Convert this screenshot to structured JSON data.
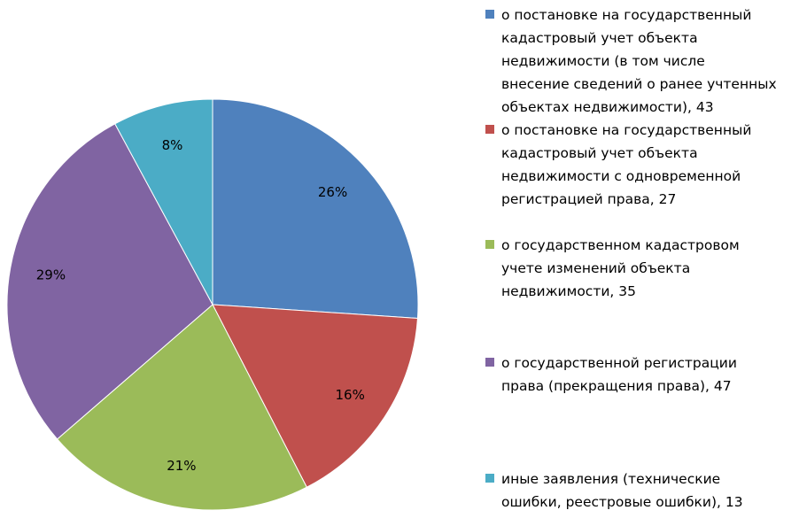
{
  "chart_data": {
    "type": "pie",
    "series": [
      {
        "name": "о постановке на государственный кадастровый учет объекта недвижимости (в том числе внесение сведений о ранее учтенных объектах недвижимости)",
        "value": 43,
        "percent_label": "26%",
        "color": "#4F81BD",
        "legend_text": "о постановке на государственный\nкадастровый учет объекта\nнедвижимости (в том числе\nвнесение сведений о ранее учтенных\nобъектах недвижимости), 43"
      },
      {
        "name": "о постановке на государственный кадастровый учет объекта недвижимости с одновременной регистрацией права",
        "value": 27,
        "percent_label": "16%",
        "color": "#C0504D",
        "legend_text": "о постановке на государственный\nкадастровый учет объекта\nнедвижимости с одновременной\nрегистрацией права, 27"
      },
      {
        "name": "о государственном кадастровом учете изменений объекта недвижимости",
        "value": 35,
        "percent_label": "21%",
        "color": "#9BBB59",
        "legend_text": "о государственном кадастровом\nучете изменений объекта\nнедвижимости, 35"
      },
      {
        "name": "о государственной регистрации права (прекращения права)",
        "value": 47,
        "percent_label": "29%",
        "color": "#8064A2",
        "legend_text": "о государственной регистрации\nправа (прекращения права), 47"
      },
      {
        "name": "иные заявления (технические ошибки, реестровые ошибки)",
        "value": 13,
        "percent_label": "8%",
        "color": "#4BACC6",
        "legend_text": "иные заявления (технические\nошибки, реестровые ошибки), 13"
      }
    ],
    "legend_position": "right"
  }
}
